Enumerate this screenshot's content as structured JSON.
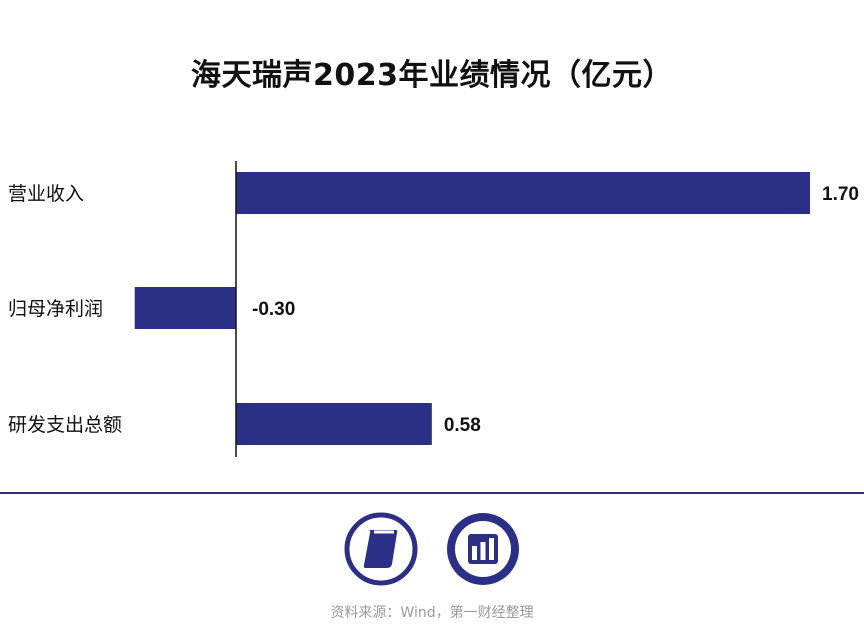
{
  "chart_data": {
    "type": "bar",
    "orientation": "horizontal",
    "title": "海天瑞声2023年业绩情况（亿元）",
    "categories": [
      "营业收入",
      "归母净利润",
      "研发支出总额"
    ],
    "values": [
      1.7,
      -0.3,
      0.58
    ],
    "value_labels": [
      "1.70",
      "-0.30",
      "0.58"
    ],
    "xlim": [
      -0.35,
      1.7
    ],
    "grid": false,
    "legend": "none",
    "bar_color": "#2b3086"
  },
  "footer": {
    "source": "资料来源：Wind，第一财经整理"
  },
  "logos": [
    "yicai-logo-icon",
    "bar-chart-logo-icon"
  ]
}
